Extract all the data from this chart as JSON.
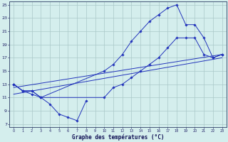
{
  "title": "Graphe des températures (°C)",
  "bg_color": "#d4eeed",
  "line_color": "#2233bb",
  "grid_color": "#aac8c8",
  "xmin": 0,
  "xmax": 23,
  "ymin": 7,
  "ymax": 25,
  "yticks": [
    7,
    9,
    11,
    13,
    15,
    17,
    19,
    21,
    23,
    25
  ],
  "xticks": [
    0,
    1,
    2,
    3,
    4,
    5,
    6,
    7,
    8,
    9,
    10,
    11,
    12,
    13,
    14,
    15,
    16,
    17,
    18,
    19,
    20,
    21,
    22,
    23
  ],
  "min_x": [
    0,
    1,
    2,
    3,
    4,
    5,
    6,
    7,
    8
  ],
  "min_y": [
    13,
    12,
    11.5,
    11,
    10,
    8.5,
    8,
    7.5,
    10.5
  ],
  "max_x": [
    0,
    1,
    2,
    3,
    10,
    11,
    12,
    13,
    14,
    15,
    16,
    17,
    18,
    19,
    20,
    21,
    22,
    23
  ],
  "max_y": [
    13,
    12,
    12,
    11,
    15,
    16,
    17.5,
    19.5,
    21,
    22.5,
    23.5,
    24.5,
    25,
    22,
    22,
    20,
    17,
    17.5
  ],
  "avg_x": [
    0,
    1,
    2,
    3,
    10,
    11,
    12,
    13,
    14,
    15,
    16,
    17,
    18,
    19,
    20,
    21,
    22,
    23
  ],
  "avg_y": [
    13,
    12,
    12,
    11,
    11,
    12.5,
    13,
    14,
    15,
    16,
    17,
    18.5,
    20,
    20,
    20,
    17.5,
    17,
    17.5
  ],
  "trend_x": [
    0,
    23
  ],
  "trend_y": [
    11.5,
    17.0
  ],
  "trend2_x": [
    0,
    23
  ],
  "trend2_y": [
    12.5,
    17.5
  ]
}
